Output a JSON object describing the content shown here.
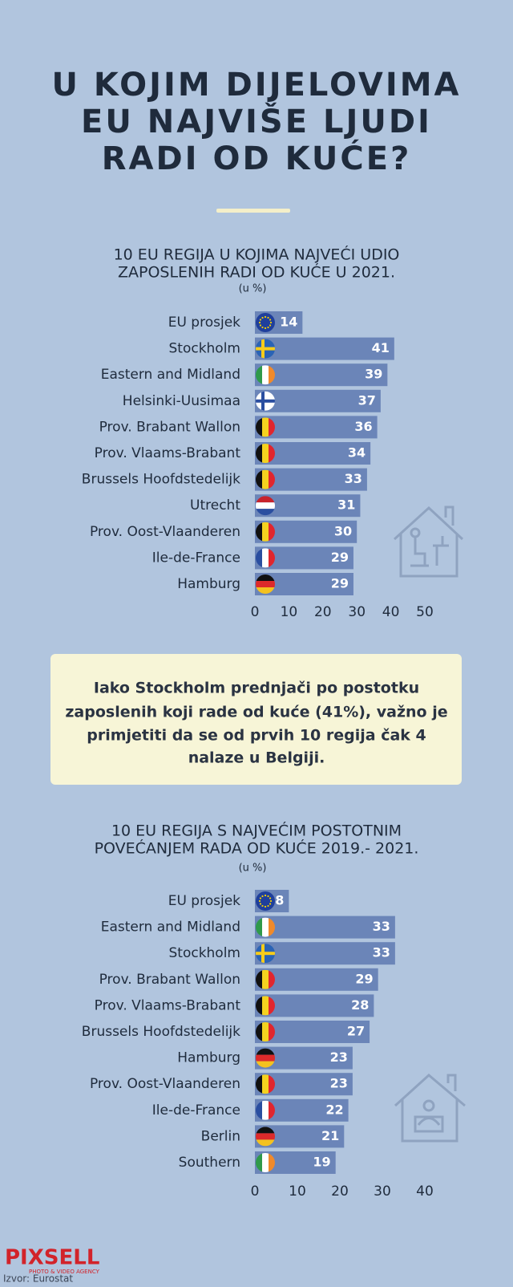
{
  "title": [
    "U KOJIM DIJELOVIMA",
    "EU NAJVIŠE LJUDI",
    "RADI OD KUĆE?"
  ],
  "chart_data": [
    {
      "type": "bar",
      "orientation": "horizontal",
      "title": [
        "10 EU REGIJA U KOJIMA NAJVEĆI UDIO",
        "ZAPOSLENIH RADI OD KUĆE U 2021."
      ],
      "subtitle": "(u %)",
      "categories": [
        "EU prosjek",
        "Stockholm",
        "Eastern and Midland",
        "Helsinki-Uusimaa",
        "Prov. Brabant Wallon",
        "Prov. Vlaams-Brabant",
        "Brussels Hoofdstedelijk",
        "Utrecht",
        "Prov. Oost-Vlaanderen",
        "Ile-de-France",
        "Hamburg"
      ],
      "values": [
        14,
        41,
        39,
        37,
        36,
        34,
        33,
        31,
        30,
        29,
        29
      ],
      "color": "#6b85b8",
      "xlim": [
        0,
        50
      ],
      "xticks": [
        0,
        10,
        20,
        30,
        40,
        50
      ]
    },
    {
      "type": "bar",
      "orientation": "horizontal",
      "title": [
        "10 EU REGIJA S NAJVEĆIM POSTOTNIM",
        "POVEĆANJEM RADA OD KUĆE 2019.- 2021."
      ],
      "subtitle": "(u %)",
      "categories": [
        "EU prosjek",
        "Eastern and Midland",
        "Stockholm",
        "Prov. Brabant Wallon",
        "Prov. Vlaams-Brabant",
        "Brussels Hoofdstedelijk",
        "Hamburg",
        "Prov. Oost-Vlaanderen",
        "Ile-de-France",
        "Berlin",
        "Southern"
      ],
      "values": [
        8,
        33,
        33,
        29,
        28,
        27,
        23,
        23,
        22,
        21,
        19
      ],
      "color": "#6b85b8",
      "xlim": [
        0,
        40
      ],
      "xticks": [
        0,
        10,
        20,
        30,
        40
      ]
    }
  ],
  "note": [
    "Iako Stockholm prednjači po postotku",
    "zaposlenih koji rade od kuće (41%), važno je",
    "primjetiti da se od prvih 10 regija čak 4",
    "nalaze u Belgiji."
  ],
  "logo": {
    "name": "PIXSELL",
    "tagline": "PHOTO & VIDEO AGENCY"
  },
  "source": "Izvor: Eurostat"
}
